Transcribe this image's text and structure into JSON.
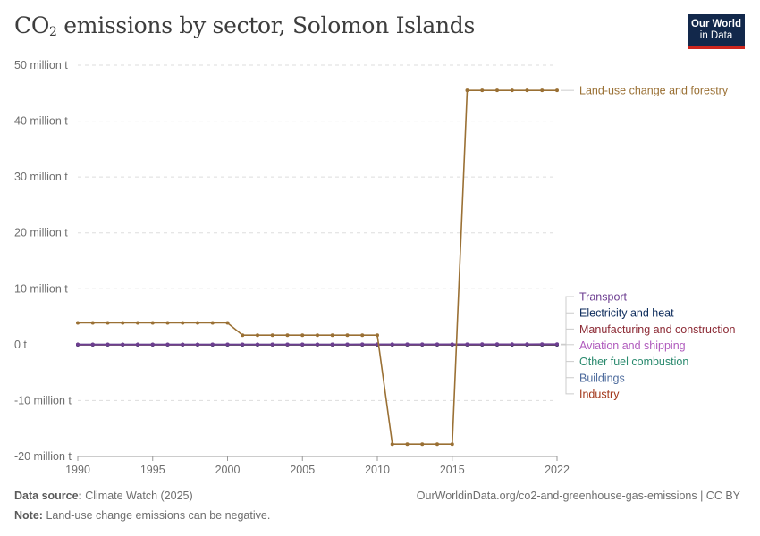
{
  "title": {
    "main": "CO",
    "sub": "2",
    "rest": " emissions by sector, Solomon Islands"
  },
  "logo": {
    "line1": "Our World",
    "line2": "in Data"
  },
  "footer": {
    "source_label": "Data source:",
    "source_value": "Climate Watch (2025)",
    "credit": "OurWorldinData.org/co2-and-greenhouse-gas-emissions | CC BY",
    "note_label": "Note:",
    "note_value": "Land-use change emissions can be negative."
  },
  "chart_data": {
    "type": "line",
    "xlim": [
      1990,
      2022
    ],
    "ylim": [
      -20000000,
      50000000
    ],
    "y_ticks": [
      {
        "v": 50000000,
        "label": "50 million t"
      },
      {
        "v": 40000000,
        "label": "40 million t"
      },
      {
        "v": 30000000,
        "label": "30 million t"
      },
      {
        "v": 20000000,
        "label": "20 million t"
      },
      {
        "v": 10000000,
        "label": "10 million t"
      },
      {
        "v": 0,
        "label": "0 t"
      },
      {
        "v": -10000000,
        "label": "-10 million t"
      },
      {
        "v": -20000000,
        "label": "-20 million t"
      }
    ],
    "x_ticks": [
      1990,
      1995,
      2000,
      2005,
      2010,
      2015,
      2022
    ],
    "grid": true,
    "x": [
      1990,
      1991,
      1992,
      1993,
      1994,
      1995,
      1996,
      1997,
      1998,
      1999,
      2000,
      2001,
      2002,
      2003,
      2004,
      2005,
      2006,
      2007,
      2008,
      2009,
      2010,
      2011,
      2012,
      2013,
      2014,
      2015,
      2016,
      2017,
      2018,
      2019,
      2020,
      2021,
      2022
    ],
    "series": [
      {
        "name": "Land-use change and forestry",
        "color": "#9a7034",
        "label_value": 45500000,
        "values": [
          3900000,
          3900000,
          3900000,
          3900000,
          3900000,
          3900000,
          3900000,
          3900000,
          3900000,
          3900000,
          3900000,
          1700000,
          1700000,
          1700000,
          1700000,
          1700000,
          1700000,
          1700000,
          1700000,
          1700000,
          1700000,
          -17800000,
          -17800000,
          -17800000,
          -17800000,
          -17800000,
          45500000,
          45500000,
          45500000,
          45500000,
          45500000,
          45500000,
          45500000
        ]
      },
      {
        "name": "Transport",
        "color": "#6d3e91",
        "label_value": 8600000,
        "values": [
          40000,
          40000,
          40000,
          40000,
          45000,
          45000,
          45000,
          45000,
          45000,
          50000,
          50000,
          50000,
          50000,
          55000,
          55000,
          60000,
          60000,
          65000,
          65000,
          70000,
          70000,
          75000,
          75000,
          80000,
          80000,
          85000,
          85000,
          90000,
          90000,
          95000,
          95000,
          100000,
          100000
        ]
      },
      {
        "name": "Electricity and heat",
        "color": "#0c2b5b",
        "label_value": 5700000,
        "values": [
          20000,
          20000,
          20000,
          20000,
          22000,
          22000,
          22000,
          24000,
          24000,
          24000,
          26000,
          26000,
          26000,
          28000,
          28000,
          30000,
          30000,
          32000,
          32000,
          34000,
          34000,
          36000,
          36000,
          38000,
          38000,
          40000,
          40000,
          42000,
          42000,
          44000,
          44000,
          46000,
          46000
        ]
      },
      {
        "name": "Manufacturing and construction",
        "color": "#8c2a35",
        "label_value": 2800000,
        "values": [
          10000,
          10000,
          10000,
          10000,
          10000,
          10000,
          10000,
          10000,
          10000,
          10000,
          10000,
          10000,
          10000,
          10000,
          10000,
          10000,
          10000,
          10000,
          10000,
          10000,
          10000,
          10000,
          10000,
          10000,
          10000,
          10000,
          10000,
          10000,
          10000,
          10000,
          10000,
          10000,
          10000
        ]
      },
      {
        "name": "Aviation and shipping",
        "color": "#b05bbd",
        "label_value": -100000,
        "values": [
          8000,
          8000,
          8000,
          8000,
          8000,
          8000,
          8000,
          8000,
          8000,
          8000,
          8000,
          8000,
          8000,
          8000,
          8000,
          8000,
          8000,
          8000,
          8000,
          8000,
          8000,
          8000,
          8000,
          8000,
          8000,
          8000,
          8000,
          8000,
          8000,
          8000,
          8000,
          8000,
          8000
        ]
      },
      {
        "name": "Other fuel combustion",
        "color": "#2a8a6e",
        "label_value": -3000000,
        "values": [
          5000,
          5000,
          5000,
          5000,
          5000,
          5000,
          5000,
          5000,
          5000,
          5000,
          5000,
          5000,
          5000,
          5000,
          5000,
          5000,
          5000,
          5000,
          5000,
          5000,
          5000,
          5000,
          5000,
          5000,
          5000,
          5000,
          5000,
          5000,
          5000,
          5000,
          5000,
          5000,
          5000
        ]
      },
      {
        "name": "Buildings",
        "color": "#4c6a9c",
        "label_value": -5900000,
        "values": [
          3000,
          3000,
          3000,
          3000,
          3000,
          3000,
          3000,
          3000,
          3000,
          3000,
          3000,
          3000,
          3000,
          3000,
          3000,
          3000,
          3000,
          3000,
          3000,
          3000,
          3000,
          3000,
          3000,
          3000,
          3000,
          3000,
          3000,
          3000,
          3000,
          3000,
          3000,
          3000,
          3000
        ]
      },
      {
        "name": "Industry",
        "color": "#a2371a",
        "label_value": -8800000,
        "values": [
          0,
          0,
          0,
          0,
          0,
          0,
          0,
          0,
          0,
          0,
          0,
          0,
          0,
          0,
          0,
          0,
          0,
          0,
          0,
          0,
          0,
          0,
          0,
          0,
          0,
          0,
          0,
          0,
          0,
          0,
          0,
          0,
          0
        ]
      }
    ]
  }
}
